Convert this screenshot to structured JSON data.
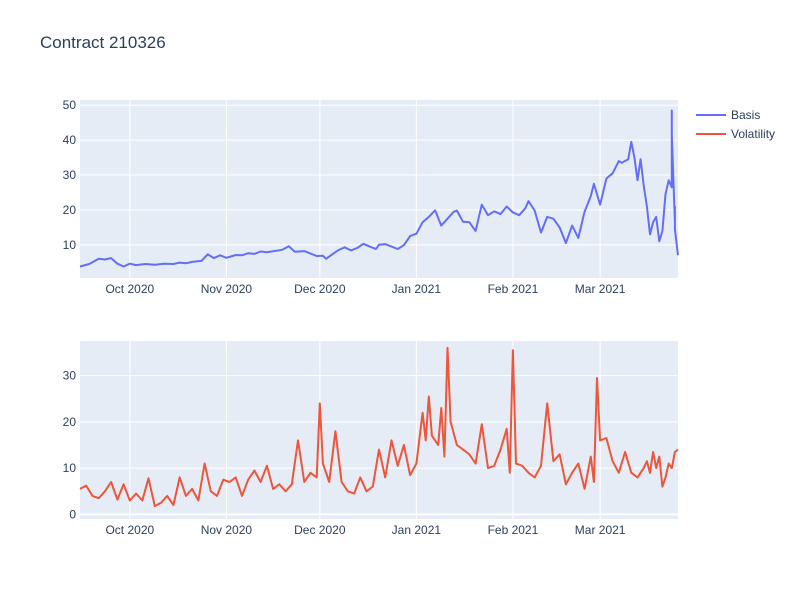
{
  "chart_data": {
    "title": "Contract 210326",
    "type": "line",
    "legend": {
      "placement": "top-right",
      "entries": [
        {
          "name": "Basis",
          "color": "#636efa"
        },
        {
          "name": "Volatility",
          "color": "#ef553b"
        }
      ]
    },
    "x_range": [
      "2020-09-15",
      "2021-03-26"
    ],
    "x_ticks": [
      {
        "date": "2020-10-01",
        "label": "Oct 2020"
      },
      {
        "date": "2020-11-01",
        "label": "Nov 2020"
      },
      {
        "date": "2020-12-01",
        "label": "Dec 2020"
      },
      {
        "date": "2021-01-01",
        "label": "Jan 2021"
      },
      {
        "date": "2021-02-01",
        "label": "Feb 2021"
      },
      {
        "date": "2021-03-01",
        "label": "Mar 2021"
      }
    ],
    "panels": [
      {
        "series": "Basis",
        "color": "#636efa",
        "ylim": [
          0.5,
          51.5
        ],
        "yticks": [
          10,
          20,
          30,
          40,
          50
        ],
        "grid": true,
        "points": [
          [
            "2020-09-15",
            3.8
          ],
          [
            "2020-09-18",
            4.5
          ],
          [
            "2020-09-21",
            6.0
          ],
          [
            "2020-09-23",
            5.8
          ],
          [
            "2020-09-25",
            6.2
          ],
          [
            "2020-09-27",
            4.6
          ],
          [
            "2020-09-29",
            3.8
          ],
          [
            "2020-10-01",
            4.6
          ],
          [
            "2020-10-03",
            4.2
          ],
          [
            "2020-10-06",
            4.5
          ],
          [
            "2020-10-09",
            4.3
          ],
          [
            "2020-10-12",
            4.6
          ],
          [
            "2020-10-15",
            4.5
          ],
          [
            "2020-10-17",
            4.9
          ],
          [
            "2020-10-19",
            4.7
          ],
          [
            "2020-10-21",
            5.1
          ],
          [
            "2020-10-24",
            5.4
          ],
          [
            "2020-10-26",
            7.3
          ],
          [
            "2020-10-28",
            6.2
          ],
          [
            "2020-10-30",
            7.0
          ],
          [
            "2020-11-01",
            6.3
          ],
          [
            "2020-11-04",
            7.1
          ],
          [
            "2020-11-06",
            7.0
          ],
          [
            "2020-11-08",
            7.6
          ],
          [
            "2020-11-10",
            7.4
          ],
          [
            "2020-11-12",
            8.1
          ],
          [
            "2020-11-14",
            7.9
          ],
          [
            "2020-11-17",
            8.3
          ],
          [
            "2020-11-19",
            8.6
          ],
          [
            "2020-11-21",
            9.6
          ],
          [
            "2020-11-23",
            8.0
          ],
          [
            "2020-11-26",
            8.2
          ],
          [
            "2020-11-28",
            7.5
          ],
          [
            "2020-11-30",
            6.8
          ],
          [
            "2020-12-02",
            6.9
          ],
          [
            "2020-12-03",
            6.0
          ],
          [
            "2020-12-05",
            7.3
          ],
          [
            "2020-12-07",
            8.5
          ],
          [
            "2020-12-09",
            9.3
          ],
          [
            "2020-12-11",
            8.4
          ],
          [
            "2020-12-13",
            9.1
          ],
          [
            "2020-12-15",
            10.3
          ],
          [
            "2020-12-17",
            9.5
          ],
          [
            "2020-12-19",
            8.8
          ],
          [
            "2020-12-20",
            10.0
          ],
          [
            "2020-12-22",
            10.2
          ],
          [
            "2020-12-24",
            9.5
          ],
          [
            "2020-12-26",
            8.8
          ],
          [
            "2020-12-28",
            9.9
          ],
          [
            "2020-12-30",
            12.5
          ],
          [
            "2021-01-01",
            13.2
          ],
          [
            "2021-01-03",
            16.5
          ],
          [
            "2021-01-05",
            18.0
          ],
          [
            "2021-01-07",
            19.9
          ],
          [
            "2021-01-09",
            15.5
          ],
          [
            "2021-01-11",
            17.5
          ],
          [
            "2021-01-13",
            19.5
          ],
          [
            "2021-01-14",
            19.8
          ],
          [
            "2021-01-16",
            16.6
          ],
          [
            "2021-01-18",
            16.5
          ],
          [
            "2021-01-20",
            14.0
          ],
          [
            "2021-01-22",
            21.5
          ],
          [
            "2021-01-24",
            18.5
          ],
          [
            "2021-01-26",
            19.6
          ],
          [
            "2021-01-28",
            18.8
          ],
          [
            "2021-01-30",
            21.0
          ],
          [
            "2021-02-01",
            19.3
          ],
          [
            "2021-02-03",
            18.5
          ],
          [
            "2021-02-05",
            20.5
          ],
          [
            "2021-02-06",
            22.5
          ],
          [
            "2021-02-08",
            19.8
          ],
          [
            "2021-02-10",
            13.5
          ],
          [
            "2021-02-12",
            18.0
          ],
          [
            "2021-02-14",
            17.5
          ],
          [
            "2021-02-16",
            15.0
          ],
          [
            "2021-02-18",
            10.5
          ],
          [
            "2021-02-20",
            15.5
          ],
          [
            "2021-02-22",
            12.0
          ],
          [
            "2021-02-24",
            19.5
          ],
          [
            "2021-02-26",
            24.0
          ],
          [
            "2021-02-27",
            27.5
          ],
          [
            "2021-03-01",
            21.5
          ],
          [
            "2021-03-03",
            29.0
          ],
          [
            "2021-03-05",
            30.5
          ],
          [
            "2021-03-07",
            34.0
          ],
          [
            "2021-03-08",
            33.5
          ],
          [
            "2021-03-10",
            34.5
          ],
          [
            "2021-03-11",
            39.5
          ],
          [
            "2021-03-12",
            35.0
          ],
          [
            "2021-03-13",
            28.5
          ],
          [
            "2021-03-14",
            34.5
          ],
          [
            "2021-03-15",
            27.0
          ],
          [
            "2021-03-16",
            21.0
          ],
          [
            "2021-03-17",
            13.0
          ],
          [
            "2021-03-18",
            16.5
          ],
          [
            "2021-03-19",
            18.0
          ],
          [
            "2021-03-20",
            11.0
          ],
          [
            "2021-03-21",
            14.0
          ],
          [
            "2021-03-22",
            24.5
          ],
          [
            "2021-03-23",
            28.5
          ],
          [
            "2021-03-24",
            26.5
          ],
          [
            "2021-03-24",
            48.5
          ],
          [
            "2021-03-24",
            41.5
          ],
          [
            "2021-03-25",
            16.5
          ],
          [
            "2021-03-25",
            21.0
          ],
          [
            "2021-03-25",
            14.5
          ],
          [
            "2021-03-26",
            7.0
          ]
        ]
      },
      {
        "series": "Volatility",
        "color": "#ef553b",
        "ylim": [
          -1,
          37.5
        ],
        "yticks": [
          0,
          10,
          20,
          30
        ],
        "grid": true,
        "points": [
          [
            "2020-09-15",
            5.5
          ],
          [
            "2020-09-17",
            6.2
          ],
          [
            "2020-09-19",
            4.0
          ],
          [
            "2020-09-21",
            3.5
          ],
          [
            "2020-09-23",
            5.0
          ],
          [
            "2020-09-25",
            7.0
          ],
          [
            "2020-09-27",
            3.2
          ],
          [
            "2020-09-29",
            6.5
          ],
          [
            "2020-10-01",
            3.0
          ],
          [
            "2020-10-03",
            4.5
          ],
          [
            "2020-10-05",
            3.0
          ],
          [
            "2020-10-07",
            7.8
          ],
          [
            "2020-10-09",
            1.8
          ],
          [
            "2020-10-11",
            2.5
          ],
          [
            "2020-10-13",
            4.0
          ],
          [
            "2020-10-15",
            2.0
          ],
          [
            "2020-10-17",
            8.0
          ],
          [
            "2020-10-19",
            4.0
          ],
          [
            "2020-10-21",
            5.5
          ],
          [
            "2020-10-23",
            3.0
          ],
          [
            "2020-10-25",
            11.0
          ],
          [
            "2020-10-27",
            5.0
          ],
          [
            "2020-10-29",
            4.0
          ],
          [
            "2020-10-31",
            7.5
          ],
          [
            "2020-11-02",
            7.0
          ],
          [
            "2020-11-04",
            8.0
          ],
          [
            "2020-11-06",
            4.0
          ],
          [
            "2020-11-08",
            7.5
          ],
          [
            "2020-11-10",
            9.5
          ],
          [
            "2020-11-12",
            7.0
          ],
          [
            "2020-11-14",
            10.5
          ],
          [
            "2020-11-16",
            5.5
          ],
          [
            "2020-11-18",
            6.5
          ],
          [
            "2020-11-20",
            5.0
          ],
          [
            "2020-11-22",
            6.5
          ],
          [
            "2020-11-24",
            16.0
          ],
          [
            "2020-11-26",
            7.0
          ],
          [
            "2020-11-28",
            9.0
          ],
          [
            "2020-11-30",
            8.0
          ],
          [
            "2020-12-01",
            24.0
          ],
          [
            "2020-12-02",
            11.0
          ],
          [
            "2020-12-04",
            7.0
          ],
          [
            "2020-12-06",
            18.0
          ],
          [
            "2020-12-08",
            7.0
          ],
          [
            "2020-12-10",
            5.0
          ],
          [
            "2020-12-12",
            4.5
          ],
          [
            "2020-12-14",
            8.0
          ],
          [
            "2020-12-16",
            5.0
          ],
          [
            "2020-12-18",
            6.0
          ],
          [
            "2020-12-20",
            14.0
          ],
          [
            "2020-12-22",
            8.0
          ],
          [
            "2020-12-24",
            16.0
          ],
          [
            "2020-12-26",
            10.5
          ],
          [
            "2020-12-28",
            15.0
          ],
          [
            "2020-12-30",
            8.5
          ],
          [
            "2021-01-01",
            11.0
          ],
          [
            "2021-01-03",
            22.0
          ],
          [
            "2021-01-04",
            16.0
          ],
          [
            "2021-01-05",
            25.5
          ],
          [
            "2021-01-06",
            17.0
          ],
          [
            "2021-01-08",
            15.0
          ],
          [
            "2021-01-09",
            23.0
          ],
          [
            "2021-01-10",
            12.5
          ],
          [
            "2021-01-11",
            36.0
          ],
          [
            "2021-01-12",
            20.0
          ],
          [
            "2021-01-14",
            15.0
          ],
          [
            "2021-01-16",
            14.0
          ],
          [
            "2021-01-18",
            13.0
          ],
          [
            "2021-01-20",
            11.0
          ],
          [
            "2021-01-22",
            19.5
          ],
          [
            "2021-01-24",
            10.0
          ],
          [
            "2021-01-26",
            10.5
          ],
          [
            "2021-01-28",
            14.0
          ],
          [
            "2021-01-30",
            18.5
          ],
          [
            "2021-01-31",
            9.0
          ],
          [
            "2021-02-01",
            35.5
          ],
          [
            "2021-02-02",
            11.0
          ],
          [
            "2021-02-04",
            10.5
          ],
          [
            "2021-02-06",
            9.0
          ],
          [
            "2021-02-08",
            8.0
          ],
          [
            "2021-02-10",
            10.5
          ],
          [
            "2021-02-12",
            24.0
          ],
          [
            "2021-02-14",
            11.5
          ],
          [
            "2021-02-16",
            13.0
          ],
          [
            "2021-02-18",
            6.5
          ],
          [
            "2021-02-20",
            9.0
          ],
          [
            "2021-02-22",
            11.0
          ],
          [
            "2021-02-24",
            5.5
          ],
          [
            "2021-02-26",
            12.5
          ],
          [
            "2021-02-27",
            7.0
          ],
          [
            "2021-02-28",
            29.5
          ],
          [
            "2021-03-01",
            16.0
          ],
          [
            "2021-03-03",
            16.5
          ],
          [
            "2021-03-05",
            11.5
          ],
          [
            "2021-03-07",
            9.0
          ],
          [
            "2021-03-09",
            13.5
          ],
          [
            "2021-03-11",
            9.0
          ],
          [
            "2021-03-13",
            8.0
          ],
          [
            "2021-03-15",
            10.0
          ],
          [
            "2021-03-16",
            11.5
          ],
          [
            "2021-03-17",
            9.0
          ],
          [
            "2021-03-18",
            13.5
          ],
          [
            "2021-03-19",
            10.0
          ],
          [
            "2021-03-20",
            12.5
          ],
          [
            "2021-03-21",
            6.0
          ],
          [
            "2021-03-22",
            8.0
          ],
          [
            "2021-03-23",
            11.0
          ],
          [
            "2021-03-24",
            10.0
          ],
          [
            "2021-03-25",
            13.5
          ],
          [
            "2021-03-26",
            14.0
          ]
        ]
      }
    ]
  }
}
